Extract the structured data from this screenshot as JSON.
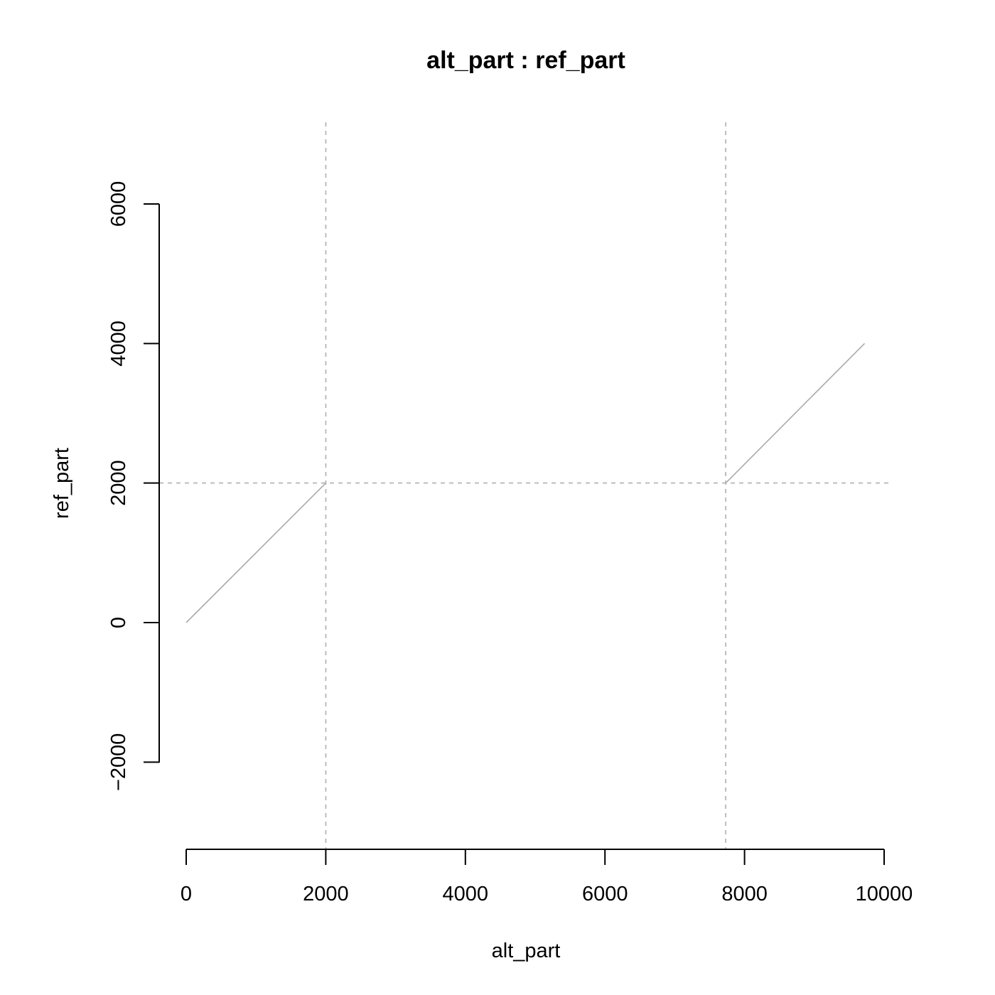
{
  "chart_data": {
    "type": "line",
    "title": "alt_part : ref_part",
    "xlabel": "alt_part",
    "ylabel": "ref_part",
    "xlim": [
      0,
      10000
    ],
    "ylim": [
      -2000,
      6000
    ],
    "x_ticks": [
      0,
      2000,
      4000,
      6000,
      8000,
      10000
    ],
    "y_ticks": [
      -2000,
      0,
      2000,
      4000,
      6000
    ],
    "x_tick_labels": [
      "0",
      "2000",
      "4000",
      "6000",
      "8000",
      "10000"
    ],
    "y_tick_labels": [
      "−2000",
      "0",
      "2000",
      "4000",
      "6000"
    ],
    "vertical_reference_lines": [
      2000,
      7730
    ],
    "horizontal_reference_lines": [
      2000
    ],
    "reference_line_color": "#bdbdbd",
    "segment_color": "#aaaaaa",
    "series": [
      {
        "x": [
          0,
          2000
        ],
        "y": [
          0,
          2000
        ]
      },
      {
        "x": [
          7730,
          9720
        ],
        "y": [
          2000,
          4000
        ]
      }
    ],
    "grid": false,
    "legend": "none"
  }
}
